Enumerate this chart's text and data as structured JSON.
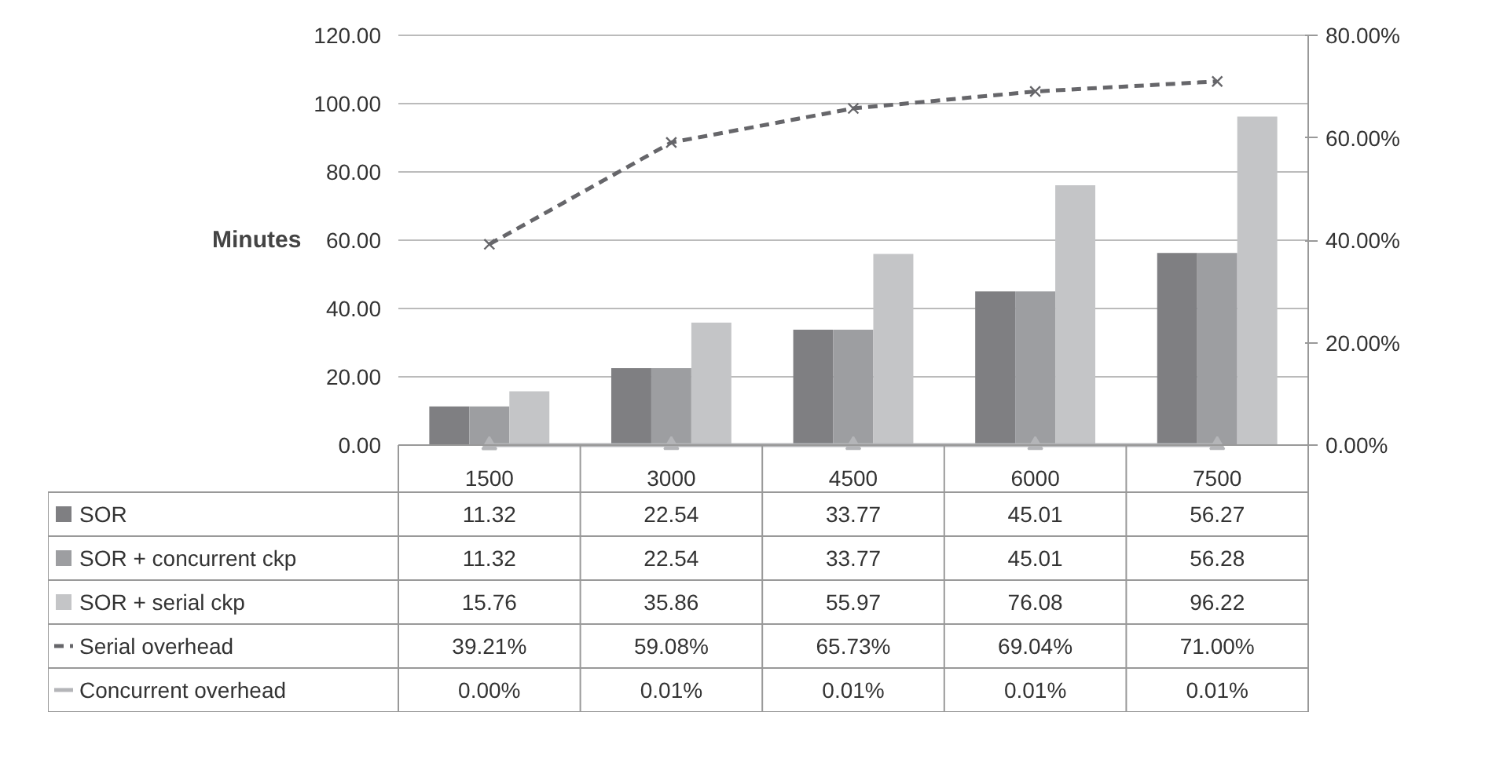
{
  "chart_data": {
    "type": "bar",
    "ylabel": "Minutes",
    "categories": [
      "1500",
      "3000",
      "4500",
      "6000",
      "7500"
    ],
    "ylim": [
      0,
      120
    ],
    "yticks": [
      {
        "value": 0,
        "label": "0.00"
      },
      {
        "value": 20,
        "label": "20.00"
      },
      {
        "value": 40,
        "label": "40.00"
      },
      {
        "value": 60,
        "label": "60.00"
      },
      {
        "value": 80,
        "label": "80.00"
      },
      {
        "value": 100,
        "label": "100.00"
      },
      {
        "value": 120,
        "label": "120.00"
      }
    ],
    "y2lim": [
      0,
      80
    ],
    "y2ticks": [
      {
        "value": 0,
        "label": "0.00%"
      },
      {
        "value": 20,
        "label": "20.00%"
      },
      {
        "value": 40,
        "label": "40.00%"
      },
      {
        "value": 60,
        "label": "60.00%"
      },
      {
        "value": 80,
        "label": "80.00%"
      }
    ],
    "grid": "y",
    "legend": "bottom left",
    "series": [
      {
        "name": "SOR",
        "color": "#7f7f82",
        "values": [
          11.32,
          22.54,
          33.77,
          45.01,
          56.27
        ],
        "value_labels": [
          "11.32",
          "22.54",
          "33.77",
          "45.01",
          "56.27"
        ]
      },
      {
        "name": "SOR + concurrent ckp",
        "color": "#9d9ea1",
        "values": [
          11.32,
          22.54,
          33.77,
          45.01,
          56.28
        ],
        "value_labels": [
          "11.32",
          "22.54",
          "33.77",
          "45.01",
          "56.28"
        ]
      },
      {
        "name": "SOR + serial ckp",
        "color": "#c4c5c7",
        "values": [
          15.76,
          35.86,
          55.97,
          76.08,
          96.22
        ],
        "value_labels": [
          "15.76",
          "35.86",
          "55.97",
          "76.08",
          "96.22"
        ]
      },
      {
        "name": "Serial overhead",
        "type": "line",
        "axis": "y2",
        "color": "#66666a",
        "marker": "cross",
        "line_style": "dashed",
        "values": [
          39.21,
          59.08,
          65.73,
          69.04,
          71.0
        ],
        "value_labels": [
          "39.21%",
          "59.08%",
          "65.73%",
          "69.04%",
          "71.00%"
        ]
      },
      {
        "name": "Concurrent overhead",
        "type": "line",
        "axis": "y2",
        "color": "#b4b5b8",
        "marker": "triangle",
        "line_style": "solid",
        "values": [
          0.0,
          0.01,
          0.01,
          0.01,
          0.01
        ],
        "value_labels": [
          "0.00%",
          "0.01%",
          "0.01%",
          "0.01%",
          "0.01%"
        ]
      }
    ]
  }
}
